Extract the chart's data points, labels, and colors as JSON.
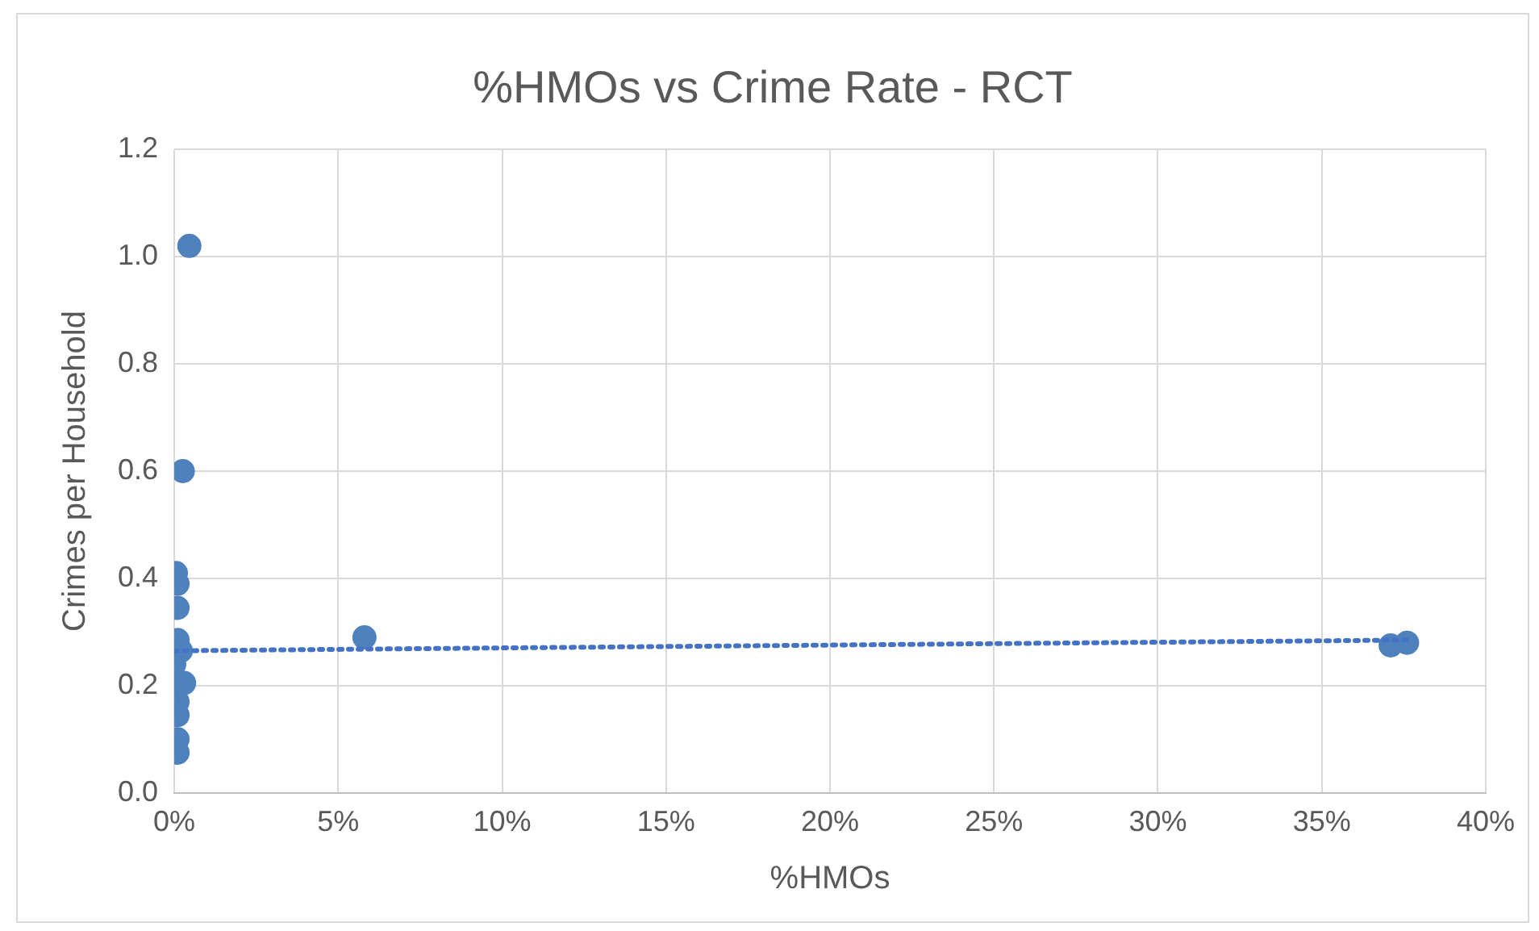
{
  "chart_data": {
    "type": "scatter",
    "title": "%HMOs vs Crime Rate - RCT",
    "xlabel": "%HMOs",
    "ylabel": "Crimes per Household",
    "grid": true,
    "legend": false,
    "marker": "circle",
    "xlim": [
      0,
      40
    ],
    "xticks": [
      {
        "value": 0,
        "label": "0%"
      },
      {
        "value": 5,
        "label": "5%"
      },
      {
        "value": 10,
        "label": "10%"
      },
      {
        "value": 15,
        "label": "15%"
      },
      {
        "value": 20,
        "label": "20%"
      },
      {
        "value": 25,
        "label": "25%"
      },
      {
        "value": 30,
        "label": "30%"
      },
      {
        "value": 35,
        "label": "35%"
      },
      {
        "value": 40,
        "label": "40%"
      }
    ],
    "ylim": [
      0,
      1.2
    ],
    "yticks": [
      {
        "value": 0,
        "label": "0.0"
      },
      {
        "value": 0.2,
        "label": "0.2"
      },
      {
        "value": 0.4,
        "label": "0.4"
      },
      {
        "value": 0.6,
        "label": "0.6"
      },
      {
        "value": 0.8,
        "label": "0.8"
      },
      {
        "value": 1,
        "label": "1.0"
      },
      {
        "value": 1.2,
        "label": "1.2"
      }
    ],
    "series": [
      {
        "color": "#4f81bd",
        "x": [
          0.46,
          0.26,
          0.05,
          0.1,
          0.1,
          0.1,
          0.2,
          0,
          0.3,
          0.1,
          0.1,
          0.1,
          0.1,
          5.8,
          37.1,
          37.6
        ],
        "values": [
          1.02,
          0.6,
          0.41,
          0.39,
          0.345,
          0.285,
          0.265,
          0.24,
          0.205,
          0.17,
          0.145,
          0.1,
          0.075,
          0.29,
          0.275,
          0.28
        ]
      },
      {
        "type": "line",
        "color": "#4472c4",
        "line_style": "dotted",
        "marker": "none",
        "x": [
          0,
          37.6
        ],
        "values": [
          0.265,
          0.285
        ]
      }
    ]
  }
}
